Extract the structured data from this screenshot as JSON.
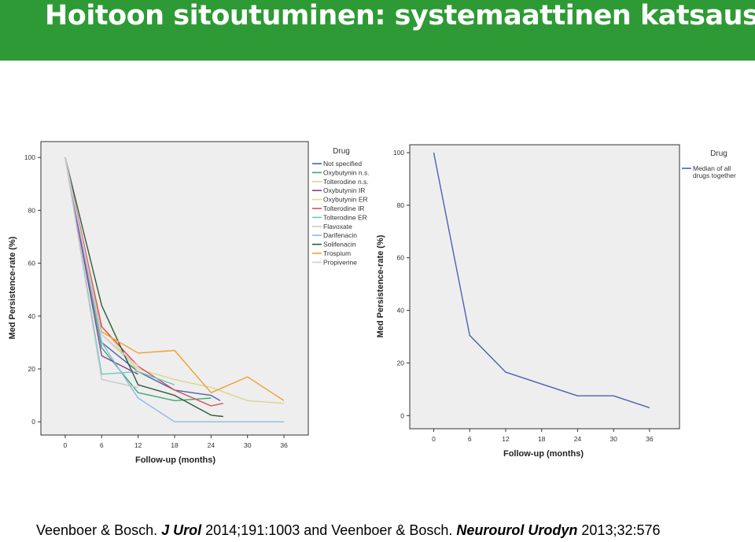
{
  "slide": {
    "title": "Hoitoon sitoutuminen: systemaattinen katsaus",
    "citation": {
      "part1": "Veenboer & Bosch. ",
      "journal1": "J Urol",
      "part2": " 2014;191:1003 and Veenboer & Bosch. ",
      "journal2": "Neurourol Urodyn",
      "part3": " 2013;32:576"
    },
    "colors": {
      "title_bar": "#2e9a35",
      "plot_bg": "#eeeeee"
    }
  },
  "chart_data": [
    {
      "type": "line",
      "xlabel": "Follow-up (months)",
      "ylabel": "Med Persistence-rate (%)",
      "x_ticks": [
        0,
        6,
        12,
        18,
        24,
        30,
        36
      ],
      "y_ticks": [
        0,
        20,
        40,
        60,
        80,
        100
      ],
      "xlim": [
        -4,
        40
      ],
      "ylim": [
        -5,
        106
      ],
      "legend_title": "Drug",
      "legend_position": "right",
      "grid": false,
      "series": [
        {
          "name": "Not specified",
          "color": "#4a62b0",
          "points": [
            [
              0,
              100
            ],
            [
              6,
              30
            ],
            [
              12,
              19
            ],
            [
              18,
              12
            ],
            [
              24,
              10
            ],
            [
              25.5,
              8
            ]
          ]
        },
        {
          "name": "Oxybutynin n.s.",
          "color": "#3daa6a",
          "points": [
            [
              0,
              100
            ],
            [
              6,
              28
            ],
            [
              12,
              11
            ],
            [
              18,
              8
            ],
            [
              24,
              9
            ]
          ]
        },
        {
          "name": "Tolterodine n.s.",
          "color": "#d8d68a",
          "points": [
            [
              0,
              100
            ],
            [
              6,
              33
            ],
            [
              12,
              20
            ],
            [
              18,
              16
            ],
            [
              24,
              13
            ],
            [
              30,
              8
            ],
            [
              36,
              7
            ]
          ]
        },
        {
          "name": "Oxybutynin IR",
          "color": "#8e3b8f",
          "points": [
            [
              0,
              100
            ],
            [
              6,
              25
            ],
            [
              12,
              18
            ]
          ]
        },
        {
          "name": "Oxybutynin ER",
          "color": "#e2dc7e",
          "points": [
            [
              0,
              100
            ],
            [
              6,
              36
            ],
            [
              12,
              19
            ],
            [
              18,
              14
            ]
          ]
        },
        {
          "name": "Tolterodine IR",
          "color": "#d94c55",
          "points": [
            [
              0,
              100
            ],
            [
              6,
              36
            ],
            [
              12,
              21
            ],
            [
              18,
              12
            ],
            [
              24,
              6
            ],
            [
              26,
              7
            ]
          ]
        },
        {
          "name": "Tolterodine ER",
          "color": "#68c9c9",
          "points": [
            [
              0,
              100
            ],
            [
              6,
              18
            ],
            [
              12,
              19
            ],
            [
              18,
              14
            ]
          ]
        },
        {
          "name": "Flavoxate",
          "color": "#c8c8c8",
          "points": [
            [
              0,
              100
            ],
            [
              6,
              16
            ],
            [
              12,
              13
            ]
          ]
        },
        {
          "name": "Darifenacin",
          "color": "#8fb9e6",
          "points": [
            [
              0,
              100
            ],
            [
              6,
              30
            ],
            [
              12,
              9
            ],
            [
              18,
              0
            ],
            [
              36,
              0
            ]
          ]
        },
        {
          "name": "Solifenacin",
          "color": "#2b5d3a",
          "points": [
            [
              0,
              100
            ],
            [
              6,
              44
            ],
            [
              12,
              14
            ],
            [
              18,
              10
            ],
            [
              24,
              2.5
            ],
            [
              26,
              2
            ]
          ]
        },
        {
          "name": "Trospium",
          "color": "#f0a030",
          "points": [
            [
              0,
              100
            ],
            [
              6,
              34
            ],
            [
              12,
              26
            ],
            [
              18,
              27
            ],
            [
              24,
              11
            ],
            [
              30,
              17
            ],
            [
              36,
              8
            ]
          ]
        },
        {
          "name": "Propiverine",
          "color": "#d7c6de",
          "points": [
            [
              0,
              100
            ],
            [
              6,
              33
            ],
            [
              12,
              21
            ]
          ]
        }
      ]
    },
    {
      "type": "line",
      "xlabel": "Follow-up (months)",
      "ylabel": "Med Persistence-rate (%)",
      "x_ticks": [
        0,
        6,
        12,
        18,
        24,
        30,
        36
      ],
      "y_ticks": [
        0,
        20,
        40,
        60,
        80,
        100
      ],
      "xlim": [
        -4,
        41
      ],
      "ylim": [
        -5,
        103
      ],
      "legend_title": "Drug",
      "legend_position": "right",
      "grid": false,
      "series": [
        {
          "name": "Median of all drugs together",
          "color": "#4a62b0",
          "points": [
            [
              0,
              100
            ],
            [
              6,
              30.5
            ],
            [
              12,
              16.5
            ],
            [
              18,
              12
            ],
            [
              24,
              7.5
            ],
            [
              30,
              7.5
            ],
            [
              36,
              3
            ]
          ]
        }
      ]
    }
  ]
}
